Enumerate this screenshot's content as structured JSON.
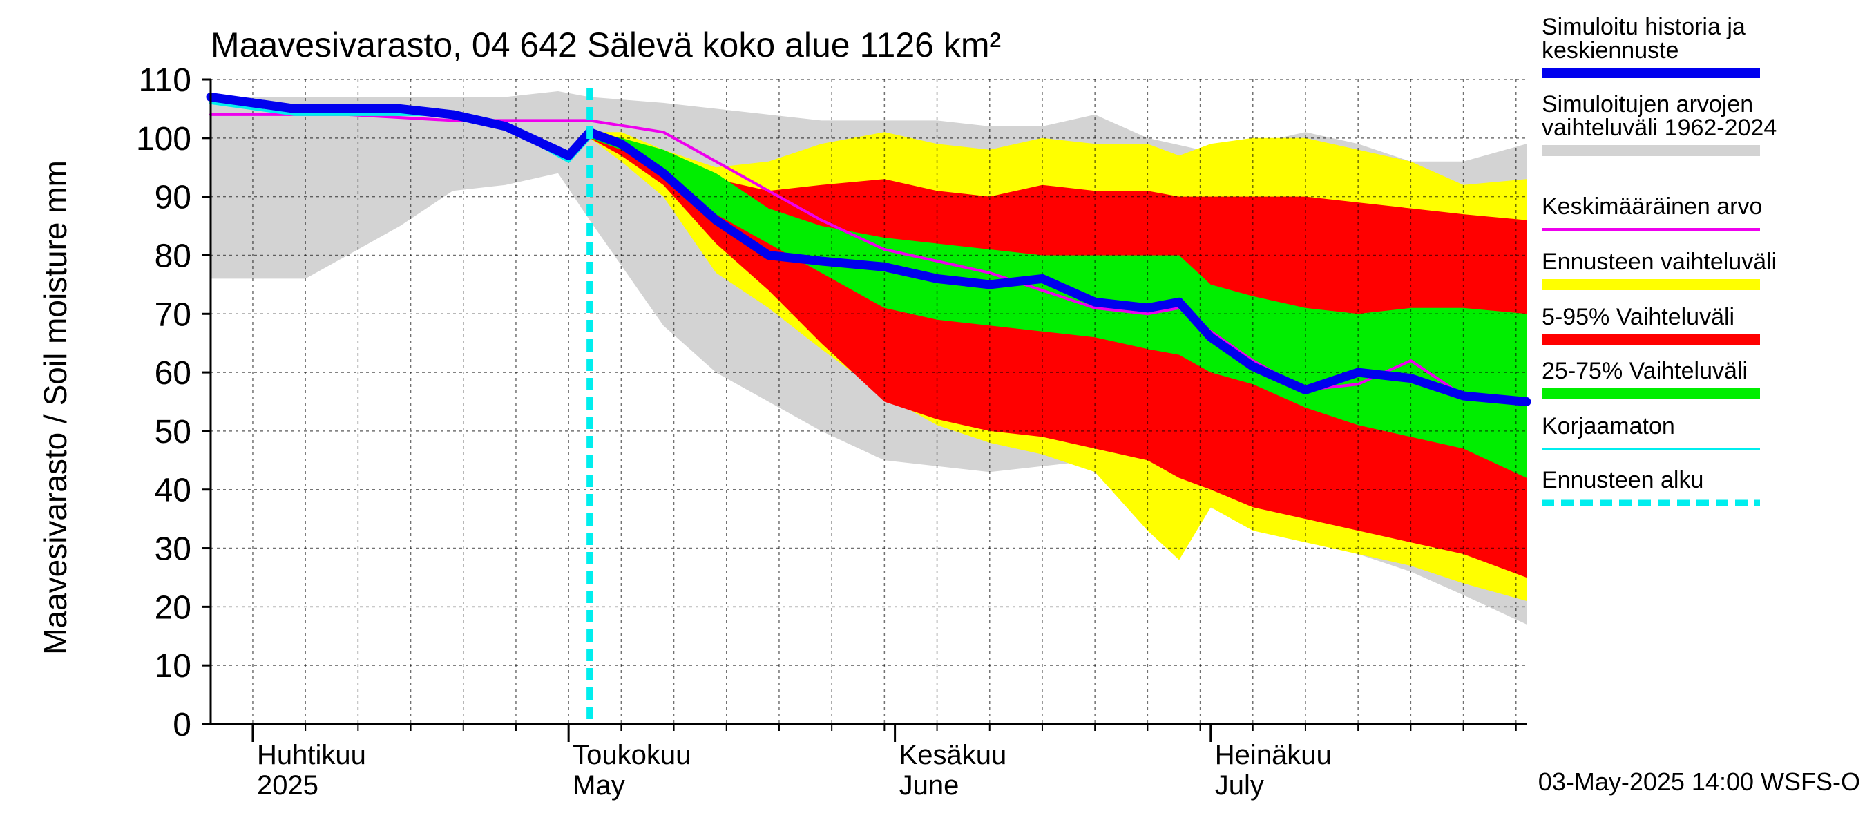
{
  "chart_data": {
    "type": "area",
    "title": "Maavesivarasto, 04 642 Sälevä koko alue 1126 km²",
    "ylabel": "Maavesivarasto / Soil moisture   mm",
    "ylim": [
      0,
      110
    ],
    "yticks": [
      0,
      10,
      20,
      30,
      40,
      50,
      60,
      70,
      80,
      90,
      100,
      110
    ],
    "xlim": [
      "2025-03-28",
      "2025-07-31"
    ],
    "forecast_start": "2025-05-03",
    "month_labels": [
      {
        "fi": "Huhtikuu",
        "en": "2025",
        "date": "2025-04-01"
      },
      {
        "fi": "Toukokuu",
        "en": "May",
        "date": "2025-05-01"
      },
      {
        "fi": "Kesäkuu",
        "en": "June",
        "date": "2025-06-01"
      },
      {
        "fi": "Heinäkuu",
        "en": "July",
        "date": "2025-07-01"
      }
    ],
    "footer": "03-May-2025 14:00 WSFS-O",
    "legend": [
      {
        "label": "Simuloitu historia ja keskiennuste",
        "color": "#0000ee",
        "style": "thick"
      },
      {
        "label": "Simuloitujen arvojen vaihteluväli 1962-2024",
        "color": "#d3d3d3",
        "style": "band"
      },
      {
        "label": "Keskimääräinen arvo",
        "color": "#ee00ee",
        "style": "line"
      },
      {
        "label": "Ennusteen vaihteluväli",
        "color": "#ffff00",
        "style": "band"
      },
      {
        "label": "5-95% Vaihteluväli",
        "color": "#ff0000",
        "style": "band"
      },
      {
        "label": "25-75% Vaihteluväli",
        "color": "#00ee00",
        "style": "band"
      },
      {
        "label": "Korjaamaton",
        "color": "#00eeee",
        "style": "line"
      },
      {
        "label": "Ennusteen alku",
        "color": "#00eeee",
        "style": "dashed"
      }
    ],
    "series": [
      {
        "name": "Simuloitujen arvojen vaihteluväli 1962-2024",
        "type": "band",
        "color": "#d3d3d3",
        "x": [
          "2025-03-28",
          "2025-04-01",
          "2025-04-06",
          "2025-04-10",
          "2025-04-15",
          "2025-04-20",
          "2025-04-25",
          "2025-04-30",
          "2025-05-03",
          "2025-05-10",
          "2025-05-15",
          "2025-05-20",
          "2025-05-25",
          "2025-05-31",
          "2025-06-05",
          "2025-06-10",
          "2025-06-15",
          "2025-06-20",
          "2025-06-25",
          "2025-06-30",
          "2025-07-05",
          "2025-07-10",
          "2025-07-15",
          "2025-07-20",
          "2025-07-25",
          "2025-07-31"
        ],
        "low": [
          76,
          76,
          76,
          80,
          85,
          91,
          92,
          94,
          86,
          68,
          60,
          55,
          50,
          45,
          44,
          43,
          44,
          45,
          41,
          37,
          36,
          34,
          29,
          26,
          22,
          17
        ],
        "high": [
          107,
          107,
          107,
          107,
          107,
          107,
          107,
          108,
          107,
          106,
          105,
          104,
          103,
          103,
          103,
          102,
          102,
          104,
          100,
          98,
          99,
          101,
          99,
          96,
          96,
          99
        ]
      },
      {
        "name": "Ennusteen vaihteluväli",
        "type": "band",
        "color": "#ffff00",
        "x": [
          "2025-05-03",
          "2025-05-06",
          "2025-05-10",
          "2025-05-15",
          "2025-05-20",
          "2025-05-25",
          "2025-05-31",
          "2025-06-05",
          "2025-06-10",
          "2025-06-15",
          "2025-06-20",
          "2025-06-25",
          "2025-06-28",
          "2025-07-01",
          "2025-07-05",
          "2025-07-10",
          "2025-07-15",
          "2025-07-20",
          "2025-07-25",
          "2025-07-31"
        ],
        "low": [
          100,
          96,
          90,
          77,
          71,
          64,
          56,
          51,
          48,
          46,
          43,
          33,
          28,
          37,
          33,
          31,
          29,
          27,
          24,
          21
        ],
        "high": [
          101,
          101,
          98,
          95,
          96,
          99,
          101,
          99,
          98,
          100,
          99,
          99,
          97,
          99,
          100,
          100,
          98,
          96,
          92,
          93
        ]
      },
      {
        "name": "5-95% Vaihteluväli",
        "type": "band",
        "color": "#ff0000",
        "x": [
          "2025-05-03",
          "2025-05-06",
          "2025-05-10",
          "2025-05-15",
          "2025-05-20",
          "2025-05-25",
          "2025-05-31",
          "2025-06-05",
          "2025-06-10",
          "2025-06-15",
          "2025-06-20",
          "2025-06-25",
          "2025-06-28",
          "2025-07-01",
          "2025-07-05",
          "2025-07-10",
          "2025-07-15",
          "2025-07-20",
          "2025-07-25",
          "2025-07-31"
        ],
        "low": [
          100,
          97,
          92,
          82,
          74,
          65,
          55,
          52,
          50,
          49,
          47,
          45,
          42,
          40,
          37,
          35,
          33,
          31,
          29,
          25
        ],
        "high": [
          101,
          100,
          97,
          93,
          91,
          92,
          93,
          91,
          90,
          92,
          91,
          91,
          90,
          90,
          90,
          90,
          89,
          88,
          87,
          86
        ]
      },
      {
        "name": "25-75% Vaihteluväli",
        "type": "band",
        "color": "#00ee00",
        "x": [
          "2025-05-03",
          "2025-05-06",
          "2025-05-10",
          "2025-05-15",
          "2025-05-20",
          "2025-05-25",
          "2025-05-31",
          "2025-06-05",
          "2025-06-10",
          "2025-06-15",
          "2025-06-20",
          "2025-06-25",
          "2025-06-28",
          "2025-07-01",
          "2025-07-05",
          "2025-07-10",
          "2025-07-15",
          "2025-07-20",
          "2025-07-25",
          "2025-07-31"
        ],
        "low": [
          100,
          98,
          94,
          87,
          82,
          77,
          71,
          69,
          68,
          67,
          66,
          64,
          63,
          60,
          58,
          54,
          51,
          49,
          47,
          42
        ],
        "high": [
          101,
          100,
          98,
          94,
          88,
          85,
          83,
          82,
          81,
          80,
          80,
          80,
          80,
          75,
          73,
          71,
          70,
          71,
          71,
          70
        ]
      },
      {
        "name": "Keskimääräinen arvo",
        "type": "line",
        "color": "#ee00ee",
        "x": [
          "2025-03-28",
          "2025-04-10",
          "2025-04-20",
          "2025-04-30",
          "2025-05-03",
          "2025-05-10",
          "2025-05-15",
          "2025-05-20",
          "2025-05-25",
          "2025-05-31",
          "2025-06-05",
          "2025-06-10",
          "2025-06-15",
          "2025-06-20",
          "2025-06-25",
          "2025-06-28",
          "2025-07-01",
          "2025-07-05",
          "2025-07-10",
          "2025-07-15",
          "2025-07-20",
          "2025-07-25",
          "2025-07-31"
        ],
        "values": [
          104,
          104,
          103,
          103,
          103,
          101,
          96,
          91,
          86,
          81,
          79,
          77,
          74,
          71,
          70,
          71,
          67,
          62,
          57,
          58,
          62,
          56,
          55
        ]
      },
      {
        "name": "Korjaamaton",
        "type": "line",
        "color": "#00eeee",
        "x": [
          "2025-03-28",
          "2025-04-05",
          "2025-04-10",
          "2025-04-15",
          "2025-04-20",
          "2025-04-25",
          "2025-05-01",
          "2025-05-03"
        ],
        "values": [
          106,
          104,
          104,
          104,
          104,
          102,
          96,
          100
        ]
      },
      {
        "name": "Simuloitu historia ja keskiennuste",
        "type": "line",
        "color": "#0000ee",
        "x": [
          "2025-03-28",
          "2025-04-05",
          "2025-04-10",
          "2025-04-15",
          "2025-04-20",
          "2025-04-25",
          "2025-05-01",
          "2025-05-03",
          "2025-05-06",
          "2025-05-10",
          "2025-05-15",
          "2025-05-20",
          "2025-05-25",
          "2025-05-31",
          "2025-06-05",
          "2025-06-10",
          "2025-06-15",
          "2025-06-20",
          "2025-06-25",
          "2025-06-28",
          "2025-07-01",
          "2025-07-05",
          "2025-07-10",
          "2025-07-15",
          "2025-07-20",
          "2025-07-25",
          "2025-07-31"
        ],
        "values": [
          107,
          105,
          105,
          105,
          104,
          102,
          97,
          101,
          99,
          94,
          86,
          80,
          79,
          78,
          76,
          75,
          76,
          72,
          71,
          72,
          66,
          61,
          57,
          60,
          59,
          56,
          55
        ]
      }
    ]
  }
}
